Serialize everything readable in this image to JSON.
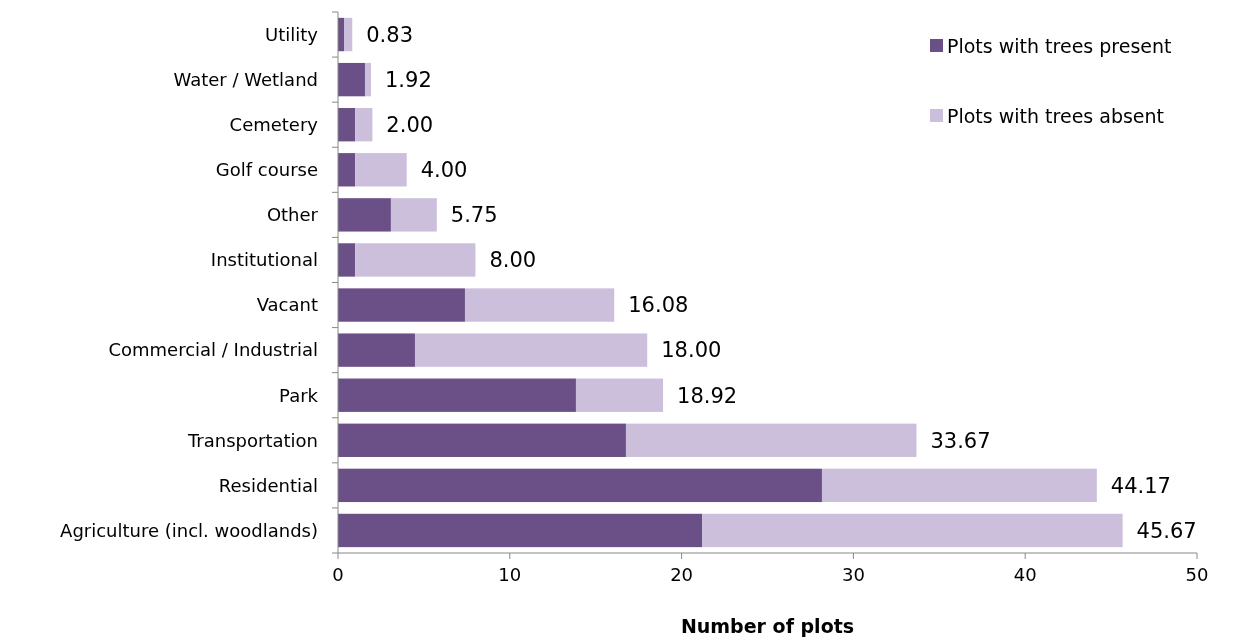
{
  "chart_data": {
    "type": "bar",
    "orientation": "horizontal",
    "stacked": true,
    "xlabel": "Number of plots",
    "categories": [
      "Utility",
      "Water / Wetland",
      "Cemetery",
      "Golf course",
      "Other",
      "Institutional",
      "Vacant",
      "Commercial / Industrial",
      "Park",
      "Transportation",
      "Residential",
      "Agriculture (incl. woodlands)"
    ],
    "series": [
      {
        "name": "Plots with trees present",
        "color": "#6a5086",
        "values": [
          0.35,
          1.57,
          1.0,
          1.0,
          3.08,
          1.0,
          7.39,
          4.48,
          13.85,
          16.76,
          28.17,
          21.19
        ]
      },
      {
        "name": "Plots with trees absent",
        "color": "#cbbfdb",
        "values": [
          0.48,
          0.35,
          1.0,
          3.0,
          2.67,
          7.0,
          8.69,
          13.52,
          5.07,
          16.91,
          16.0,
          24.48
        ]
      }
    ],
    "totals": [
      "0.83",
      "1.92",
      "2.00",
      "4.00",
      "5.75",
      "8.00",
      "16.08",
      "18.00",
      "18.92",
      "33.67",
      "44.17",
      "45.67"
    ],
    "xlim": [
      0,
      50
    ],
    "xticks": [
      0,
      10,
      20,
      30,
      40,
      50
    ],
    "legend": "top right",
    "grid": false
  }
}
